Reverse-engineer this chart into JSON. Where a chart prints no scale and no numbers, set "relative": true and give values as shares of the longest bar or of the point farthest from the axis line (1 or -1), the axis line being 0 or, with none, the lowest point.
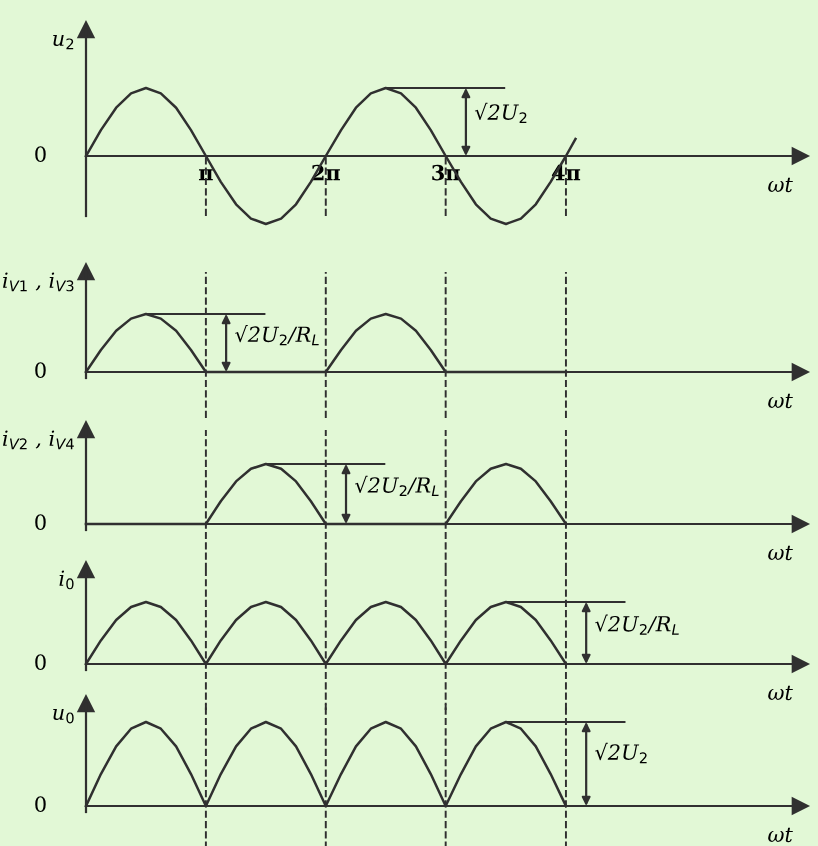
{
  "chart_data": [
    {
      "type": "line",
      "relative": true,
      "ylabel": "u$_{2}$",
      "xlabel": "ωt",
      "xlim": [
        0,
        18.7
      ],
      "xticks": [
        {
          "value": 3.14,
          "label": "π"
        },
        {
          "value": 6.28,
          "label": "2π"
        },
        {
          "value": 9.42,
          "label": "3π"
        },
        {
          "value": 12.57,
          "label": "4π"
        }
      ],
      "tick_labels": "x",
      "marker": "none",
      "line_style": "solid",
      "annotations": [
        {
          "text": "0",
          "x": 0,
          "y": 0
        },
        {
          "text": "√2U$_{2}$",
          "x": 7.85,
          "y": 1
        }
      ],
      "ref_lines": [
        {
          "axis": "x",
          "value": 3.14,
          "line_style": "dashed"
        },
        {
          "axis": "x",
          "value": 6.28,
          "line_style": "dashed"
        },
        {
          "axis": "x",
          "value": 9.42,
          "line_style": "dashed"
        },
        {
          "axis": "x",
          "value": 12.57,
          "line_style": "dashed"
        }
      ],
      "series": [
        {
          "color": "#303030",
          "x": [
            0,
            0.39,
            0.79,
            1.18,
            1.57,
            1.96,
            2.36,
            2.75,
            3.14,
            3.53,
            3.93,
            4.32,
            4.71,
            5.11,
            5.5,
            5.89,
            6.28,
            6.68,
            7.07,
            7.46,
            7.85,
            8.25,
            8.64,
            9.03,
            9.42,
            9.82,
            10.21,
            10.6,
            11.0,
            11.39,
            11.78,
            12.17,
            12.57,
            12.82
          ],
          "values": [
            0,
            0.38,
            0.71,
            0.92,
            1,
            0.92,
            0.71,
            0.38,
            0,
            -0.38,
            -0.71,
            -0.92,
            -1,
            -0.92,
            -0.71,
            -0.38,
            0,
            0.38,
            0.71,
            0.92,
            1,
            0.92,
            0.71,
            0.38,
            0,
            -0.38,
            -0.71,
            -0.92,
            -1,
            -0.92,
            -0.71,
            -0.38,
            0,
            0.25
          ]
        }
      ]
    },
    {
      "type": "line",
      "relative": true,
      "ylabel": "i$_{V1}$ , i$_{V3}$",
      "xlabel": "ωt",
      "xlim": [
        0,
        18.7
      ],
      "xticks": [
        {
          "value": 3.14,
          "label": null
        },
        {
          "value": 6.28,
          "label": null
        },
        {
          "value": 9.42,
          "label": null
        },
        {
          "value": 12.57,
          "label": null
        }
      ],
      "tick_labels": false,
      "marker": "none",
      "line_style": "solid",
      "annotations": [
        {
          "text": "0",
          "x": 0,
          "y": 0
        },
        {
          "text": "√2U$_{2}$/R$_{L}$",
          "x": 1.57,
          "y": 1
        }
      ],
      "ref_lines": [
        {
          "axis": "x",
          "value": 3.14,
          "line_style": "dashed"
        },
        {
          "axis": "x",
          "value": 6.28,
          "line_style": "dashed"
        },
        {
          "axis": "x",
          "value": 9.42,
          "line_style": "dashed"
        },
        {
          "axis": "x",
          "value": 12.57,
          "line_style": "dashed"
        }
      ],
      "series": [
        {
          "color": "#303030",
          "x": [
            0,
            0.39,
            0.79,
            1.18,
            1.57,
            1.96,
            2.36,
            2.75,
            3.14,
            3.53,
            3.93,
            4.32,
            4.71,
            5.11,
            5.5,
            5.89,
            6.28,
            6.68,
            7.07,
            7.46,
            7.85,
            8.25,
            8.64,
            9.03,
            9.42,
            9.82,
            10.21,
            10.6,
            11.0,
            11.39,
            11.78,
            12.17,
            12.57
          ],
          "values": [
            0,
            0.38,
            0.71,
            0.92,
            1,
            0.92,
            0.71,
            0.38,
            0,
            0,
            0,
            0,
            0,
            0,
            0,
            0,
            0,
            0.38,
            0.71,
            0.92,
            1,
            0.92,
            0.71,
            0.38,
            0,
            0,
            0,
            0,
            0,
            0,
            0,
            0,
            0
          ]
        }
      ]
    },
    {
      "type": "line",
      "relative": true,
      "ylabel": "i$_{V2}$ , i$_{V4}$",
      "xlabel": "ωt",
      "xlim": [
        0,
        18.7
      ],
      "xticks": [
        {
          "value": 3.14,
          "label": null
        },
        {
          "value": 6.28,
          "label": null
        },
        {
          "value": 9.42,
          "label": null
        },
        {
          "value": 12.57,
          "label": null
        }
      ],
      "tick_labels": false,
      "marker": "none",
      "line_style": "solid",
      "annotations": [
        {
          "text": "0",
          "x": 0,
          "y": 0
        },
        {
          "text": "√2U$_{2}$/R$_{L}$",
          "x": 4.71,
          "y": 1
        }
      ],
      "ref_lines": [
        {
          "axis": "x",
          "value": 3.14,
          "line_style": "dashed"
        },
        {
          "axis": "x",
          "value": 6.28,
          "line_style": "dashed"
        },
        {
          "axis": "x",
          "value": 9.42,
          "line_style": "dashed"
        },
        {
          "axis": "x",
          "value": 12.57,
          "line_style": "dashed"
        }
      ],
      "series": [
        {
          "color": "#303030",
          "x": [
            0,
            0.39,
            0.79,
            1.18,
            1.57,
            1.96,
            2.36,
            2.75,
            3.14,
            3.53,
            3.93,
            4.32,
            4.71,
            5.11,
            5.5,
            5.89,
            6.28,
            6.68,
            7.07,
            7.46,
            7.85,
            8.25,
            8.64,
            9.03,
            9.42,
            9.82,
            10.21,
            10.6,
            11.0,
            11.39,
            11.78,
            12.17,
            12.57
          ],
          "values": [
            0,
            0,
            0,
            0,
            0,
            0,
            0,
            0,
            0,
            0.38,
            0.71,
            0.92,
            1,
            0.92,
            0.71,
            0.38,
            0,
            0,
            0,
            0,
            0,
            0,
            0,
            0,
            0,
            0.38,
            0.71,
            0.92,
            1,
            0.92,
            0.71,
            0.38,
            0
          ]
        }
      ]
    },
    {
      "type": "line",
      "relative": true,
      "ylabel": "i$_{0}$",
      "xlabel": "ωt",
      "xlim": [
        0,
        18.7
      ],
      "xticks": [
        {
          "value": 3.14,
          "label": null
        },
        {
          "value": 6.28,
          "label": null
        },
        {
          "value": 9.42,
          "label": null
        },
        {
          "value": 12.57,
          "label": null
        }
      ],
      "tick_labels": false,
      "marker": "none",
      "line_style": "solid",
      "annotations": [
        {
          "text": "0",
          "x": 0,
          "y": 0
        },
        {
          "text": "√2U$_{2}$/R$_{L}$",
          "x": 11.0,
          "y": 1
        }
      ],
      "ref_lines": [
        {
          "axis": "x",
          "value": 3.14,
          "line_style": "dashed"
        },
        {
          "axis": "x",
          "value": 6.28,
          "line_style": "dashed"
        },
        {
          "axis": "x",
          "value": 9.42,
          "line_style": "dashed"
        },
        {
          "axis": "x",
          "value": 12.57,
          "line_style": "dashed"
        }
      ],
      "series": [
        {
          "color": "#303030",
          "x": [
            0,
            0.39,
            0.79,
            1.18,
            1.57,
            1.96,
            2.36,
            2.75,
            3.14,
            3.53,
            3.93,
            4.32,
            4.71,
            5.11,
            5.5,
            5.89,
            6.28,
            6.68,
            7.07,
            7.46,
            7.85,
            8.25,
            8.64,
            9.03,
            9.42,
            9.82,
            10.21,
            10.6,
            11.0,
            11.39,
            11.78,
            12.17,
            12.57
          ],
          "values": [
            0,
            0.38,
            0.71,
            0.92,
            1,
            0.92,
            0.71,
            0.38,
            0,
            0.38,
            0.71,
            0.92,
            1,
            0.92,
            0.71,
            0.38,
            0,
            0.38,
            0.71,
            0.92,
            1,
            0.92,
            0.71,
            0.38,
            0,
            0.38,
            0.71,
            0.92,
            1,
            0.92,
            0.71,
            0.38,
            0
          ]
        }
      ]
    },
    {
      "type": "line",
      "relative": true,
      "ylabel": "u$_{0}$",
      "xlabel": "ωt",
      "xlim": [
        0,
        18.7
      ],
      "xticks": [
        {
          "value": 3.14,
          "label": null
        },
        {
          "value": 6.28,
          "label": null
        },
        {
          "value": 9.42,
          "label": null
        },
        {
          "value": 12.57,
          "label": null
        }
      ],
      "tick_labels": false,
      "marker": "none",
      "line_style": "solid",
      "annotations": [
        {
          "text": "0",
          "x": 0,
          "y": 0
        },
        {
          "text": "√2U$_{2}$",
          "x": 11.0,
          "y": 1
        }
      ],
      "ref_lines": [
        {
          "axis": "x",
          "value": 3.14,
          "line_style": "dashed"
        },
        {
          "axis": "x",
          "value": 6.28,
          "line_style": "dashed"
        },
        {
          "axis": "x",
          "value": 9.42,
          "line_style": "dashed"
        },
        {
          "axis": "x",
          "value": 12.57,
          "line_style": "dashed"
        }
      ],
      "series": [
        {
          "color": "#303030",
          "x": [
            0,
            0.39,
            0.79,
            1.18,
            1.57,
            1.96,
            2.36,
            2.75,
            3.14,
            3.53,
            3.93,
            4.32,
            4.71,
            5.11,
            5.5,
            5.89,
            6.28,
            6.68,
            7.07,
            7.46,
            7.85,
            8.25,
            8.64,
            9.03,
            9.42,
            9.82,
            10.21,
            10.6,
            11.0,
            11.39,
            11.78,
            12.17,
            12.57
          ],
          "values": [
            0,
            0.38,
            0.71,
            0.92,
            1,
            0.92,
            0.71,
            0.38,
            0,
            0.38,
            0.71,
            0.92,
            1,
            0.92,
            0.71,
            0.38,
            0,
            0.38,
            0.71,
            0.92,
            1,
            0.92,
            0.71,
            0.38,
            0,
            0.38,
            0.71,
            0.92,
            1,
            0.92,
            0.71,
            0.38,
            0
          ]
        }
      ]
    }
  ]
}
